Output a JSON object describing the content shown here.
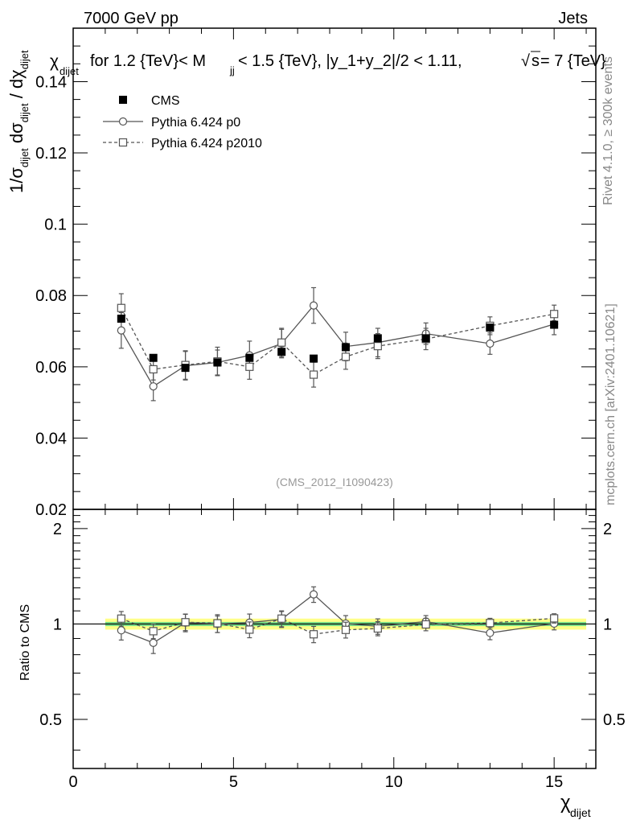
{
  "header": {
    "left": "7000 GeV pp",
    "right": "Jets"
  },
  "title": {
    "chi": "χ",
    "chi_sub": "dijet",
    "text_a": "for 1.2 {TeV}< M",
    "mjj_sub": "jj",
    "text_b": " < 1.5 {TeV}, |y_1+y_2|/2 < 1.11,",
    "sqrt": "√",
    "s": "s",
    "text_c": " = 7 {TeV}"
  },
  "side_texts": {
    "rivet": "Rivet 4.1.0, ≥ 300k events",
    "mcplots": "mcplots.cern.ch [arXiv:2401.10621]"
  },
  "watermark": "(CMS_2012_I1090423)",
  "chart_data": {
    "type": "scatter",
    "x": [
      1.5,
      2.5,
      3.5,
      4.5,
      5.5,
      6.5,
      7.5,
      8.5,
      9.5,
      11.0,
      13.0,
      15.0
    ],
    "main": {
      "ylabel": {
        "prefix": "1/σ",
        "sub1": "dijet",
        "mid": " dσ",
        "sub2": "dijet",
        "div": " / dχ",
        "sub3": "dijet"
      },
      "ylim": [
        0.02,
        0.155
      ],
      "yticks": [
        0.02,
        0.04,
        0.06,
        0.08,
        0.1,
        0.12,
        0.14
      ],
      "ytick_labels": [
        "0.02",
        "0.04",
        "0.06",
        "0.08",
        "0.1",
        "0.12",
        "0.14"
      ],
      "series": [
        {
          "name": "CMS",
          "style": "filled-square",
          "values": [
            0.0735,
            0.0625,
            0.0597,
            0.0612,
            0.0625,
            0.0642,
            0.0623,
            0.0655,
            0.068,
            0.068,
            0.071,
            0.0718
          ],
          "errors": [
            0.0,
            0.0,
            0.0,
            0.0,
            0.0,
            0.0,
            0.0,
            0.0,
            0.0,
            0.0,
            0.0,
            0.0
          ]
        },
        {
          "name": "Pythia 6.424 p0",
          "style": "open-circle-solid",
          "values": [
            0.0702,
            0.0545,
            0.0603,
            0.0612,
            0.0632,
            0.0665,
            0.0772,
            0.0657,
            0.0668,
            0.0693,
            0.0665,
            0.072
          ],
          "errors": [
            0.005,
            0.004,
            0.004,
            0.0035,
            0.004,
            0.004,
            0.005,
            0.004,
            0.004,
            0.003,
            0.003,
            0.003
          ]
        },
        {
          "name": "Pythia 6.424 p2010",
          "style": "open-square-dashed",
          "values": [
            0.0765,
            0.0593,
            0.0605,
            0.0615,
            0.06,
            0.0668,
            0.0578,
            0.0628,
            0.0658,
            0.0678,
            0.0715,
            0.0748
          ],
          "errors": [
            0.004,
            0.003,
            0.004,
            0.004,
            0.0035,
            0.004,
            0.0035,
            0.0035,
            0.0035,
            0.003,
            0.0025,
            0.0025
          ]
        }
      ]
    },
    "ratio": {
      "ylabel": "Ratio to CMS",
      "ylim": [
        0.35,
        2.3
      ],
      "ytick_labels": [
        "0.5",
        "1",
        "2"
      ],
      "ytick_values": [
        0.5,
        1,
        2
      ],
      "band_inner": [
        0.985,
        1.015
      ],
      "band_outer": [
        0.96,
        1.04
      ],
      "band_xrange": [
        1.0,
        16.0
      ],
      "series": [
        {
          "name": "Pythia 6.424 p0",
          "values": [
            0.955,
            0.872,
            1.01,
            1.0,
            1.01,
            1.035,
            1.24,
            1.003,
            0.983,
            1.018,
            0.937,
            1.003
          ],
          "errors": [
            0.065,
            0.065,
            0.065,
            0.06,
            0.065,
            0.06,
            0.07,
            0.06,
            0.055,
            0.045,
            0.045,
            0.045
          ]
        },
        {
          "name": "Pythia 6.424 p2010",
          "values": [
            1.04,
            0.949,
            1.013,
            1.005,
            0.96,
            1.04,
            0.928,
            0.958,
            0.968,
            0.997,
            1.007,
            1.042
          ],
          "errors": [
            0.055,
            0.05,
            0.06,
            0.065,
            0.055,
            0.06,
            0.055,
            0.055,
            0.05,
            0.045,
            0.035,
            0.035
          ]
        }
      ]
    },
    "xlim": [
      0,
      16.3
    ],
    "xticks": [
      0,
      5,
      10,
      15
    ],
    "xtick_labels": [
      "0",
      "5",
      "10",
      "15"
    ],
    "xlabel": "χ",
    "xlabel_sub": "dijet",
    "legend_position": "top-left",
    "colors": {
      "data": "#000000",
      "mc": "#555555",
      "band_outer": "#ffff88",
      "band_inner": "#77dd88",
      "watermark": "#999999"
    }
  }
}
